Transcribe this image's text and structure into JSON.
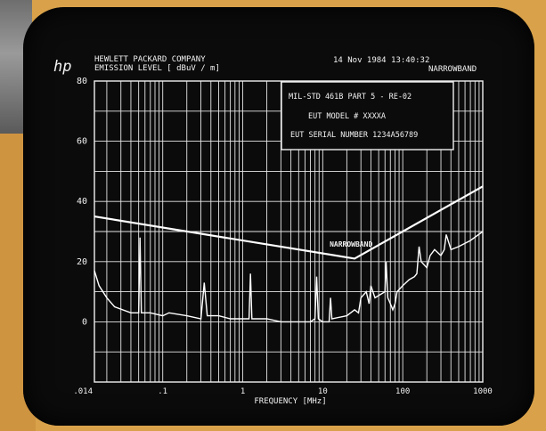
{
  "header": {
    "logo": "hp",
    "company": "HEWLETT PACKARD COMPANY",
    "emission_label": "EMISSION LEVEL [    dBuV / m]",
    "date_time": "14 Nov 1984  13:40:32",
    "mode": "NARROWBAND"
  },
  "info_box": {
    "line1": "MIL-STD 461B  PART 5 - RE-02",
    "line2": "EUT MODEL # XXXXA",
    "line3": "EUT SERIAL NUMBER 1234A56789"
  },
  "chart_data": {
    "type": "line",
    "title": "",
    "xlabel": "FREQUENCY [MHz]",
    "ylabel": "EMISSION LEVEL [dBuV / m]",
    "x_scale": "log",
    "xlim": [
      0.014,
      1000
    ],
    "ylim": [
      -20,
      80
    ],
    "x_tick_labels": [
      {
        "value": 0.014,
        "label": ".014"
      },
      {
        "value": 0.1,
        "label": ".1"
      },
      {
        "value": 1,
        "label": "1"
      },
      {
        "value": 10,
        "label": "10"
      },
      {
        "value": 100,
        "label": "100"
      },
      {
        "value": 1000,
        "label": "1000"
      }
    ],
    "y_tick_labels": [
      {
        "value": 80,
        "label": "80"
      },
      {
        "value": 60,
        "label": "60"
      },
      {
        "value": 40,
        "label": "40"
      },
      {
        "value": 20,
        "label": "20"
      },
      {
        "value": 0,
        "label": "0"
      }
    ],
    "grid": true,
    "series": [
      {
        "name": "NARROWBAND",
        "role": "limit",
        "x": [
          0.014,
          25,
          1000
        ],
        "y": [
          35,
          21,
          45
        ]
      },
      {
        "name": "",
        "role": "emission",
        "x": [
          0.014,
          0.016,
          0.02,
          0.025,
          0.04,
          0.05,
          0.052,
          0.054,
          0.07,
          0.1,
          0.12,
          0.2,
          0.3,
          0.33,
          0.36,
          0.5,
          0.7,
          1,
          1.2,
          1.25,
          1.3,
          2,
          3,
          5,
          7,
          8,
          8.4,
          8.8,
          10,
          12,
          12.5,
          13,
          20,
          25,
          28,
          30,
          35,
          38,
          40,
          45,
          60,
          62,
          65,
          70,
          75,
          80,
          85,
          100,
          120,
          140,
          150,
          160,
          170,
          200,
          220,
          250,
          300,
          330,
          350,
          400,
          500,
          700,
          1000
        ],
        "y": [
          17,
          12,
          8,
          5,
          3,
          3,
          28,
          3,
          3,
          2,
          3,
          2,
          1,
          13,
          2,
          2,
          1,
          1,
          1,
          16,
          1,
          1,
          0,
          0,
          0,
          1,
          15,
          1,
          0,
          0,
          8,
          1,
          2,
          4,
          3,
          8,
          10,
          6,
          12,
          8,
          10,
          20,
          8,
          6,
          4,
          6,
          10,
          12,
          14,
          15,
          16,
          25,
          20,
          18,
          22,
          24,
          22,
          24,
          29,
          24,
          25,
          27,
          30
        ]
      }
    ],
    "annotations": [
      "NARROWBAND"
    ]
  },
  "colors": {
    "screen": "#0b0b0b",
    "trace": "#ffffff",
    "background": "#d9a24a"
  }
}
